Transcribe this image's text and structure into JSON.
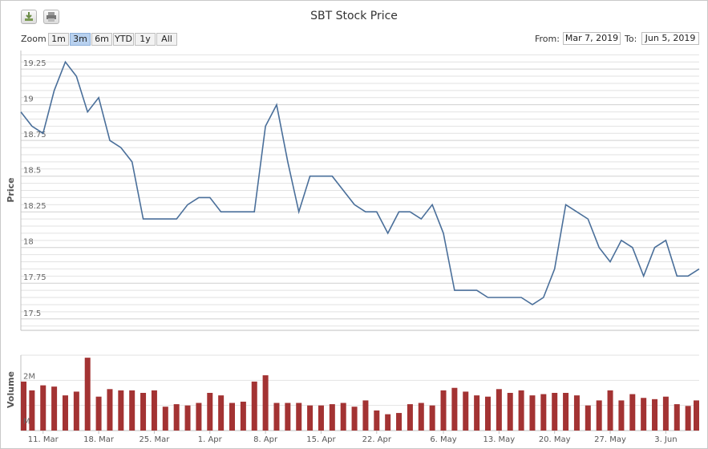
{
  "toolbar": {
    "export_icon": "download-icon",
    "print_icon": "printer-icon",
    "zoom_label": "Zoom",
    "zoom_buttons": [
      "1m",
      "3m",
      "6m",
      "YTD",
      "1y",
      "All"
    ],
    "zoom_selected": "3m",
    "from_label": "From:",
    "from_value": "Mar 7, 2019",
    "to_label": "To:",
    "to_value": "Jun 5, 2019"
  },
  "colors": {
    "price_line": "#4a6f9a",
    "volume_bar": "#a33333",
    "grid": "#e2e2e2",
    "zoom_selected": "#b8d1ef"
  },
  "chart_data": {
    "type": "line",
    "title": "SBT Stock Price",
    "x_tick_labels": [
      "11. Mar",
      "18. Mar",
      "25. Mar",
      "1. Apr",
      "8. Apr",
      "15. Apr",
      "22. Apr",
      "6. May",
      "13. May",
      "20. May",
      "27. May",
      "3. Jun"
    ],
    "price": {
      "ylabel": "Price",
      "ylim": [
        17.42,
        19.38
      ],
      "yticks": [
        17.5,
        17.75,
        18,
        18.25,
        18.5,
        18.75,
        19,
        19.25
      ],
      "ytick_labels": [
        "17.5",
        "17.75",
        "18",
        "18.25",
        "18.5",
        "18.75",
        "19",
        "19.25"
      ],
      "grid": true,
      "values": [
        18.95,
        18.85,
        18.8,
        19.1,
        19.3,
        19.2,
        18.95,
        19.05,
        18.75,
        18.7,
        18.6,
        18.2,
        18.2,
        18.2,
        18.2,
        18.3,
        18.35,
        18.35,
        18.25,
        18.25,
        18.25,
        18.25,
        18.85,
        19.0,
        18.6,
        18.25,
        18.5,
        18.5,
        18.5,
        18.4,
        18.3,
        18.25,
        18.25,
        18.1,
        18.25,
        18.25,
        18.2,
        18.3,
        18.1,
        17.7,
        17.7,
        17.7,
        17.65,
        17.65,
        17.65,
        17.65,
        17.6,
        17.65,
        17.85,
        18.3,
        18.25,
        18.2,
        18.0,
        17.9,
        18.05,
        18.0,
        17.8,
        18.0,
        18.05,
        17.8,
        17.8,
        17.85
      ]
    },
    "volume": {
      "ylabel": "Volume",
      "ylim": [
        0,
        3000000
      ],
      "ytick_labels": [
        "M",
        "2M"
      ],
      "values": [
        1.95,
        1.6,
        1.8,
        1.75,
        1.4,
        1.55,
        2.9,
        1.35,
        1.65,
        1.6,
        1.6,
        1.5,
        1.6,
        0.95,
        1.05,
        1.0,
        1.1,
        1.5,
        1.4,
        1.1,
        1.15,
        1.95,
        2.2,
        1.1,
        1.1,
        1.1,
        1.0,
        1.0,
        1.05,
        1.1,
        0.95,
        1.2,
        0.8,
        0.65,
        0.7,
        1.05,
        1.1,
        1.0,
        1.6,
        1.7,
        1.55,
        1.4,
        1.35,
        1.65,
        1.5,
        1.6,
        1.4,
        1.45,
        1.5,
        1.5,
        1.4,
        1.0,
        1.2,
        1.6,
        1.2,
        1.45,
        1.3,
        1.25,
        1.35,
        1.05,
        0.98,
        1.2
      ]
    }
  }
}
